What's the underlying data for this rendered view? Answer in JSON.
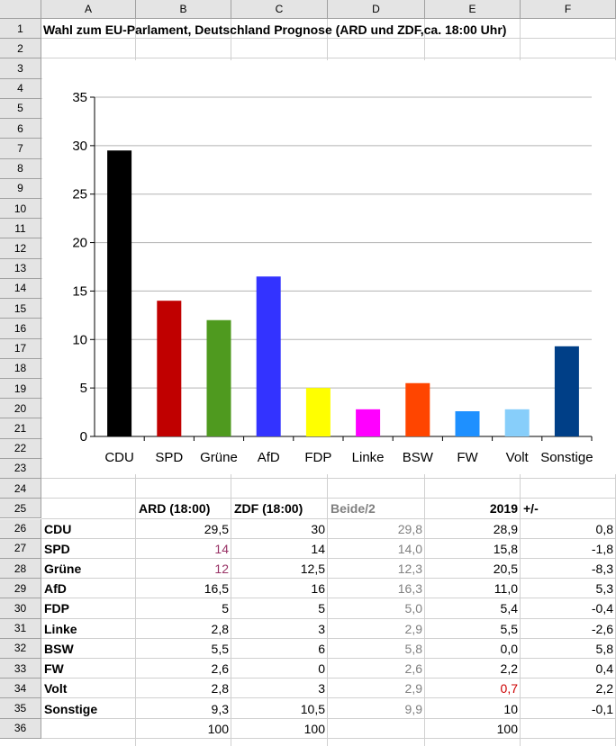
{
  "columns": [
    "A",
    "B",
    "C",
    "D",
    "E",
    "F"
  ],
  "rows": [
    "1",
    "2",
    "3",
    "4",
    "5",
    "6",
    "7",
    "8",
    "9",
    "10",
    "11",
    "12",
    "13",
    "14",
    "15",
    "16",
    "17",
    "18",
    "19",
    "20",
    "21",
    "22",
    "23",
    "24",
    "25",
    "26",
    "27",
    "28",
    "29",
    "30",
    "31",
    "32",
    "33",
    "34",
    "35",
    "36"
  ],
  "title": "Wahl zum EU-Parlament, Deutschland Prognose (ARD und ZDF,ca. 18:00 Uhr)",
  "table": {
    "headers": [
      "",
      "ARD (18:00)",
      "ZDF (18:00)",
      "Beide/2",
      "2019",
      "+/-"
    ],
    "rows": [
      [
        "CDU",
        "29,5",
        "30",
        "29,8",
        "28,9",
        "0,8"
      ],
      [
        "SPD",
        "14",
        "14",
        "14,0",
        "15,8",
        "-1,8"
      ],
      [
        "Grüne",
        "12",
        "12,5",
        "12,3",
        "20,5",
        "-8,3"
      ],
      [
        "AfD",
        "16,5",
        "16",
        "16,3",
        "11,0",
        "5,3"
      ],
      [
        "FDP",
        "5",
        "5",
        "5,0",
        "5,4",
        "-0,4"
      ],
      [
        "Linke",
        "2,8",
        "3",
        "2,9",
        "5,5",
        "-2,6"
      ],
      [
        "BSW",
        "5,5",
        "6",
        "5,8",
        "0,0",
        "5,8"
      ],
      [
        "FW",
        "2,6",
        "0",
        "2,6",
        "2,2",
        "0,4"
      ],
      [
        "Volt",
        "2,8",
        "3",
        "2,9",
        "0,7",
        "2,2"
      ],
      [
        "Sonstige",
        "9,3",
        "10,5",
        "9,9",
        "10",
        "-0,1"
      ]
    ],
    "totals": [
      "",
      "100",
      "100",
      "",
      "100",
      ""
    ]
  },
  "colors": {
    "grid_line": "#d0d0d0",
    "header_bg": "#e4e4e4",
    "beide_text": "#808080",
    "highlight_purple": "#993366",
    "highlight_red": "#cc0000"
  },
  "chart_data": {
    "type": "bar",
    "categories": [
      "CDU",
      "SPD",
      "Grüne",
      "AfD",
      "FDP",
      "Linke",
      "BSW",
      "FW",
      "Volt",
      "Sonstige"
    ],
    "values": [
      29.5,
      14,
      12,
      16.5,
      5,
      2.8,
      5.5,
      2.6,
      2.8,
      9.3
    ],
    "colors": [
      "#000000",
      "#c00000",
      "#4f9a1f",
      "#3333ff",
      "#ffff00",
      "#ff00ff",
      "#ff4500",
      "#1e90ff",
      "#87cefa",
      "#003f87"
    ],
    "yticks": [
      "0",
      "5",
      "10",
      "15",
      "20",
      "25",
      "30",
      "35"
    ],
    "ylim": [
      0,
      35
    ],
    "grid": true,
    "legend": "none"
  }
}
